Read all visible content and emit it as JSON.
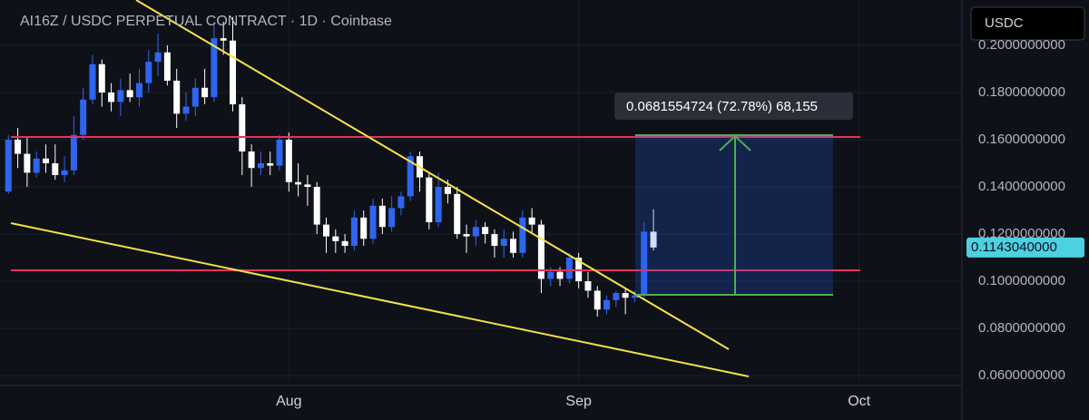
{
  "chart_data": {
    "type": "candlestick",
    "title": "AI16Z / USDC PERPETUAL CONTRACT · 1D · Coinbase",
    "currency": "USDC",
    "price_label": "0.1143040000",
    "measure_label": "0.0681554724 (72.78%) 68,155",
    "up_color": "#2f66f0",
    "down_color": "#ffffff",
    "grid": true,
    "xlim": [
      0.1,
      103
    ],
    "ylim": [
      0.0558,
      0.2192
    ],
    "xticks": [
      {
        "value": 31,
        "label": "Aug"
      },
      {
        "value": 62,
        "label": "Sep"
      },
      {
        "value": 92,
        "label": "Oct"
      }
    ],
    "yticks": [
      {
        "value": 0.2,
        "label": "0.2000000000"
      },
      {
        "value": 0.18,
        "label": "0.1800000000"
      },
      {
        "value": 0.16,
        "label": "0.1600000000"
      },
      {
        "value": 0.14,
        "label": "0.1400000000"
      },
      {
        "value": 0.12,
        "label": "0.1200000000"
      },
      {
        "value": 0.1,
        "label": "0.1000000000"
      },
      {
        "value": 0.08,
        "label": "0.0800000000"
      },
      {
        "value": 0.06,
        "label": "0.0600000000"
      }
    ],
    "x": [
      1,
      2,
      3,
      4,
      5,
      6,
      7,
      8,
      9,
      10,
      11,
      12,
      13,
      14,
      15,
      16,
      17,
      18,
      19,
      20,
      21,
      22,
      23,
      24,
      25,
      26,
      27,
      28,
      29,
      30,
      31,
      32,
      33,
      34,
      35,
      36,
      37,
      38,
      39,
      40,
      41,
      42,
      43,
      44,
      45,
      46,
      47,
      48,
      49,
      50,
      51,
      52,
      53,
      54,
      55,
      56,
      57,
      58,
      59,
      60,
      61,
      62,
      63,
      64,
      65,
      66,
      67,
      68,
      69,
      70
    ],
    "open": [
      0.138,
      0.16,
      0.154,
      0.146,
      0.152,
      0.15,
      0.145,
      0.147,
      0.162,
      0.177,
      0.192,
      0.18,
      0.176,
      0.181,
      0.178,
      0.184,
      0.193,
      0.197,
      0.185,
      0.171,
      0.174,
      0.182,
      0.178,
      0.203,
      0.202,
      0.175,
      0.155,
      0.148,
      0.15,
      0.149,
      0.16,
      0.142,
      0.141,
      0.14,
      0.124,
      0.119,
      0.117,
      0.115,
      0.127,
      0.118,
      0.132,
      0.123,
      0.131,
      0.136,
      0.153,
      0.144,
      0.125,
      0.14,
      0.137,
      0.12,
      0.119,
      0.123,
      0.12,
      0.115,
      0.118,
      0.112,
      0.127,
      0.124,
      0.101,
      0.104,
      0.101,
      0.11,
      0.1,
      0.096,
      0.088,
      0.092,
      0.095,
      0.093,
      0.094,
      0.121
    ],
    "high": [
      0.162,
      0.165,
      0.161,
      0.155,
      0.158,
      0.158,
      0.153,
      0.17,
      0.182,
      0.196,
      0.194,
      0.184,
      0.186,
      0.188,
      0.19,
      0.198,
      0.205,
      0.2,
      0.19,
      0.18,
      0.186,
      0.19,
      0.21,
      0.21,
      0.212,
      0.178,
      0.158,
      0.155,
      0.155,
      0.162,
      0.163,
      0.15,
      0.145,
      0.142,
      0.127,
      0.122,
      0.12,
      0.13,
      0.13,
      0.135,
      0.135,
      0.136,
      0.138,
      0.155,
      0.155,
      0.146,
      0.146,
      0.143,
      0.14,
      0.124,
      0.126,
      0.125,
      0.122,
      0.122,
      0.121,
      0.13,
      0.131,
      0.126,
      0.106,
      0.106,
      0.112,
      0.112,
      0.104,
      0.098,
      0.094,
      0.096,
      0.097,
      0.096,
      0.125,
      0.1305
    ],
    "low": [
      0.137,
      0.148,
      0.14,
      0.144,
      0.146,
      0.143,
      0.142,
      0.145,
      0.16,
      0.175,
      0.174,
      0.172,
      0.17,
      0.176,
      0.174,
      0.18,
      0.187,
      0.183,
      0.165,
      0.168,
      0.17,
      0.175,
      0.176,
      0.196,
      0.172,
      0.145,
      0.14,
      0.145,
      0.145,
      0.147,
      0.138,
      0.136,
      0.132,
      0.12,
      0.112,
      0.112,
      0.112,
      0.113,
      0.115,
      0.116,
      0.12,
      0.121,
      0.128,
      0.134,
      0.138,
      0.122,
      0.123,
      0.133,
      0.118,
      0.112,
      0.115,
      0.116,
      0.11,
      0.11,
      0.11,
      0.11,
      0.12,
      0.095,
      0.098,
      0.098,
      0.099,
      0.097,
      0.093,
      0.085,
      0.086,
      0.089,
      0.086,
      0.091,
      0.093,
      0.113
    ],
    "close": [
      0.16,
      0.154,
      0.146,
      0.152,
      0.15,
      0.145,
      0.147,
      0.162,
      0.177,
      0.192,
      0.18,
      0.176,
      0.181,
      0.178,
      0.184,
      0.193,
      0.197,
      0.185,
      0.171,
      0.174,
      0.182,
      0.178,
      0.203,
      0.202,
      0.175,
      0.155,
      0.148,
      0.15,
      0.149,
      0.16,
      0.142,
      0.141,
      0.14,
      0.124,
      0.119,
      0.117,
      0.115,
      0.127,
      0.118,
      0.132,
      0.123,
      0.131,
      0.136,
      0.153,
      0.144,
      0.125,
      0.14,
      0.137,
      0.12,
      0.119,
      0.123,
      0.12,
      0.115,
      0.118,
      0.112,
      0.127,
      0.124,
      0.101,
      0.104,
      0.101,
      0.11,
      0.1,
      0.096,
      0.088,
      0.092,
      0.095,
      0.093,
      0.094,
      0.121,
      0.1143
    ]
  }
}
